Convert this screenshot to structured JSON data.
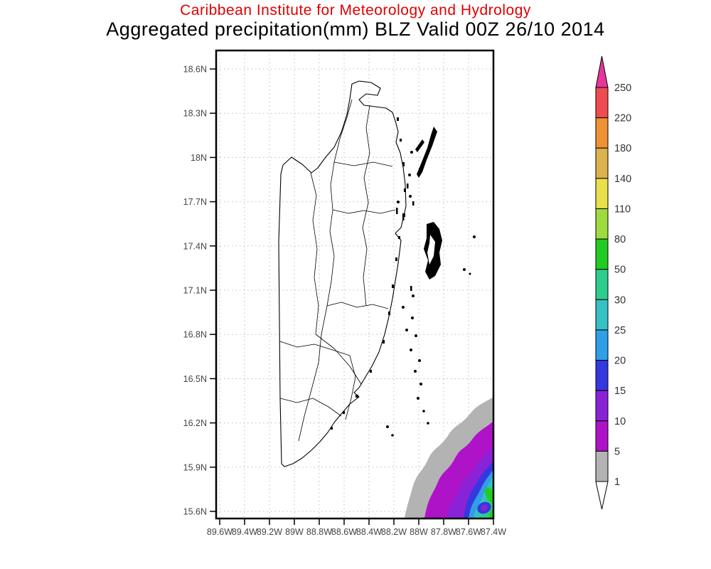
{
  "header": {
    "title_line1": "Caribbean Institute for Meteorology and Hydrology",
    "title_line2": "Aggregated precipitation(mm) BLZ Valid 00Z 26/10 2014",
    "title_line1_color": "#e00000"
  },
  "chart_data": {
    "type": "heatmap",
    "subtype": "filled-contour-map",
    "organization": "Caribbean Institute for Meteorology and Hydrology",
    "variable": "Aggregated precipitation (mm)",
    "region_code": "BLZ",
    "region_name": "Belize",
    "valid_time": "00Z 26/10 2014",
    "lat_ticks": [
      "18.6N",
      "18.3N",
      "18N",
      "17.7N",
      "17.4N",
      "17.1N",
      "16.8N",
      "16.5N",
      "16.2N",
      "15.9N",
      "15.6N"
    ],
    "lon_ticks": [
      "89.6W",
      "89.4W",
      "89.2W",
      "89W",
      "88.8W",
      "88.6W",
      "88.4W",
      "88.2W",
      "88W",
      "87.8W",
      "87.6W",
      "87.4W"
    ],
    "lat_range": [
      15.6,
      18.6
    ],
    "lon_range": [
      -89.6,
      -87.4
    ],
    "grid": true,
    "grid_style": "dotted",
    "legend_position": "right",
    "levels": [
      1,
      5,
      10,
      15,
      20,
      25,
      30,
      50,
      80,
      110,
      140,
      180,
      220,
      250
    ],
    "band_colors_bottom_up": [
      "#b3b3b3",
      "#ae13c7",
      "#8a23d8",
      "#3538df",
      "#309fe8",
      "#35c0c3",
      "#2ecc8c",
      "#22cb22",
      "#9fdb3f",
      "#e7e04a",
      "#dcb14e",
      "#ee9235",
      "#f04b50"
    ],
    "over_color": "#e8359b",
    "under_color": "#ffffff",
    "map_features": "Belize mainland outline with internal watershed/district boundaries, offshore cayes (Ambergris Caye, Caye Caulker chain, Turneffe Atoll, Lighthouse Reef dots)",
    "field_summary": "Precipitation only in far southeast offshore corner: concentric bands increasing southeastward from 1 mm (gray) through 5, 10, 15, 20, 25, 30 mm to a 30-80 mm green core near 15.6N-15.8N / 87.4W-87.7W, with a small embedded 10-20 mm eye near 15.65N 87.55W; remainder of domain below 1 mm (white)."
  },
  "legend": {
    "labels_top_down": [
      "250",
      "220",
      "180",
      "140",
      "110",
      "80",
      "50",
      "30",
      "25",
      "20",
      "15",
      "10",
      "5",
      "1"
    ]
  }
}
